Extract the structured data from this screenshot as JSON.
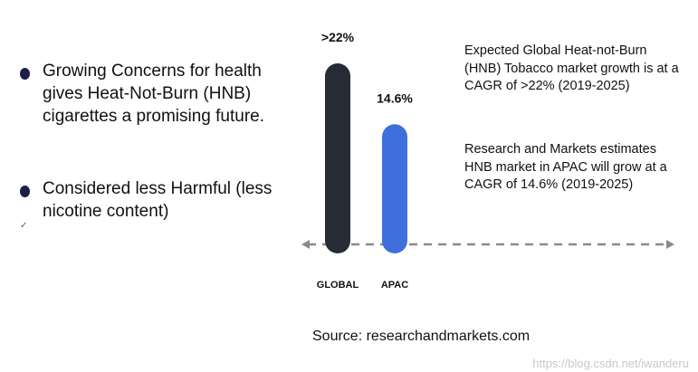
{
  "bullets": [
    {
      "text": "Growing Concerns for health gives Heat-Not-Burn (HNB) cigarettes a promising future."
    },
    {
      "text": "Considered less Harmful (less nicotine content)"
    }
  ],
  "check_glyph": "✓",
  "notes": [
    "Expected Global Heat-not-Burn (HNB) Tobacco market growth is at a CAGR of >22% (2019-2025)",
    "Research and Markets estimates HNB market in APAC will grow at a CAGR of 14.6% (2019-2025)"
  ],
  "source": "Source: researchandmarkets.com",
  "watermark": "https://blog.csdn.net/iwanderu",
  "colors": {
    "global_bar": "#262b35",
    "apac_bar": "#3e6fdc",
    "dot": "#1b1f4a",
    "axis": "#8a8a8a"
  },
  "chart_data": {
    "type": "bar",
    "categories": [
      "GLOBAL",
      "APAC"
    ],
    "values": [
      22,
      14.6
    ],
    "data_labels": [
      ">22%",
      "14.6%"
    ],
    "title": "",
    "xlabel": "",
    "ylabel": "",
    "ylim": [
      0,
      22
    ]
  }
}
